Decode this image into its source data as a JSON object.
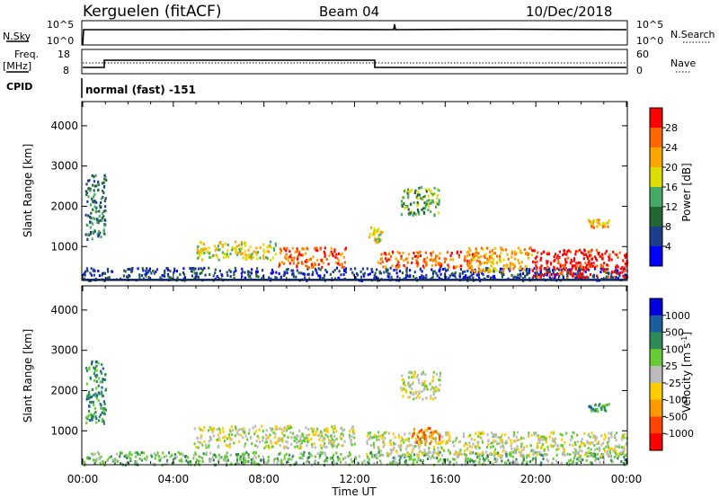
{
  "header": {
    "station": "Kerguelen (fitACF)",
    "beam": "Beam 04",
    "date": "10/Dec/2018"
  },
  "top_panels": {
    "nsky_label": "N.Sky",
    "nsearch_label": "N.Search",
    "nsky_ticks": [
      "10^5",
      "10^0"
    ],
    "nsearch_ticks": [
      "10^5",
      "10^0"
    ],
    "freq_label": "Freq.",
    "freq_unit": "[MHz]",
    "freq_ticks": [
      "18",
      "8"
    ],
    "nave_label": "Nave",
    "nave_ticks": [
      "60",
      "0"
    ],
    "cpid_label": "CPID",
    "cpid_text": "normal (fast) -151"
  },
  "chart_data": [
    {
      "type": "heatmap",
      "name": "power-panel",
      "ylabel": "Slant Range [km]",
      "xlabel": "",
      "x_range_hours": [
        0,
        24
      ],
      "ylim": [
        180,
        4600
      ],
      "yticks": [
        1000,
        2000,
        3000,
        4000
      ],
      "colorbar": {
        "label": "Power [dB]",
        "ticks": [
          "28",
          "24",
          "20",
          "16",
          "12",
          "8",
          "4"
        ],
        "colors": [
          "#ff0000",
          "#ff6600",
          "#ffa500",
          "#dddd00",
          "#44aa66",
          "#226633",
          "#1a3e8c",
          "#0000ff"
        ]
      },
      "regions": [
        {
          "t0": 0.1,
          "t1": 1.0,
          "r0": 1200,
          "r1": 2800,
          "level": 2
        },
        {
          "t0": 0.0,
          "t1": 24.0,
          "r0": 180,
          "r1": 500,
          "level": 1
        },
        {
          "t0": 4.9,
          "t1": 8.5,
          "r0": 700,
          "r1": 1150,
          "level": 4
        },
        {
          "t0": 8.6,
          "t1": 11.6,
          "r0": 500,
          "r1": 1000,
          "level": 6
        },
        {
          "t0": 12.6,
          "t1": 13.2,
          "r0": 1100,
          "r1": 1500,
          "level": 4
        },
        {
          "t0": 13.0,
          "t1": 17.5,
          "r0": 500,
          "r1": 900,
          "level": 6
        },
        {
          "t0": 14.0,
          "t1": 15.8,
          "r0": 1800,
          "r1": 2500,
          "level": 3
        },
        {
          "t0": 17.0,
          "t1": 19.8,
          "r0": 400,
          "r1": 1000,
          "level": 5
        },
        {
          "t0": 19.8,
          "t1": 24.0,
          "r0": 250,
          "r1": 950,
          "level": 7
        },
        {
          "t0": 22.3,
          "t1": 23.2,
          "r0": 1500,
          "r1": 1700,
          "level": 5
        }
      ]
    },
    {
      "type": "heatmap",
      "name": "velocity-panel",
      "ylabel": "Slant Range [km]",
      "xlabel": "Time UT",
      "x_range_hours": [
        0,
        24
      ],
      "xticks": [
        "00:00",
        "04:00",
        "08:00",
        "12:00",
        "16:00",
        "20:00",
        "00:00"
      ],
      "ylim": [
        180,
        4600
      ],
      "yticks": [
        1000,
        2000,
        3000,
        4000
      ],
      "colorbar": {
        "label": "Velocity [m s",
        "unit_sup": "-1",
        "label_end": "]",
        "ticks": [
          "1000",
          "500",
          "100",
          "25",
          "-25",
          "-100",
          "-500",
          "-1000"
        ],
        "colors": [
          "#0000dd",
          "#1a5ea0",
          "#2e8b57",
          "#66cc33",
          "#bbbbbb",
          "#ffcc00",
          "#ff9900",
          "#ff4400",
          "#ff0000"
        ]
      },
      "regions": [
        {
          "t0": 0.1,
          "t1": 1.0,
          "r0": 1200,
          "r1": 2800,
          "level": 2
        },
        {
          "t0": 0.0,
          "t1": 24.0,
          "r0": 180,
          "r1": 500,
          "level": 3
        },
        {
          "t0": 4.9,
          "t1": 12.0,
          "r0": 600,
          "r1": 1150,
          "level": 4
        },
        {
          "t0": 12.5,
          "t1": 24.0,
          "r0": 400,
          "r1": 1000,
          "level": 4
        },
        {
          "t0": 14.5,
          "t1": 16.0,
          "r0": 700,
          "r1": 1100,
          "level": 6
        },
        {
          "t0": 14.0,
          "t1": 15.8,
          "r0": 1800,
          "r1": 2500,
          "level": 4
        },
        {
          "t0": 22.3,
          "t1": 23.2,
          "r0": 1500,
          "r1": 1700,
          "level": 2
        }
      ]
    }
  ]
}
